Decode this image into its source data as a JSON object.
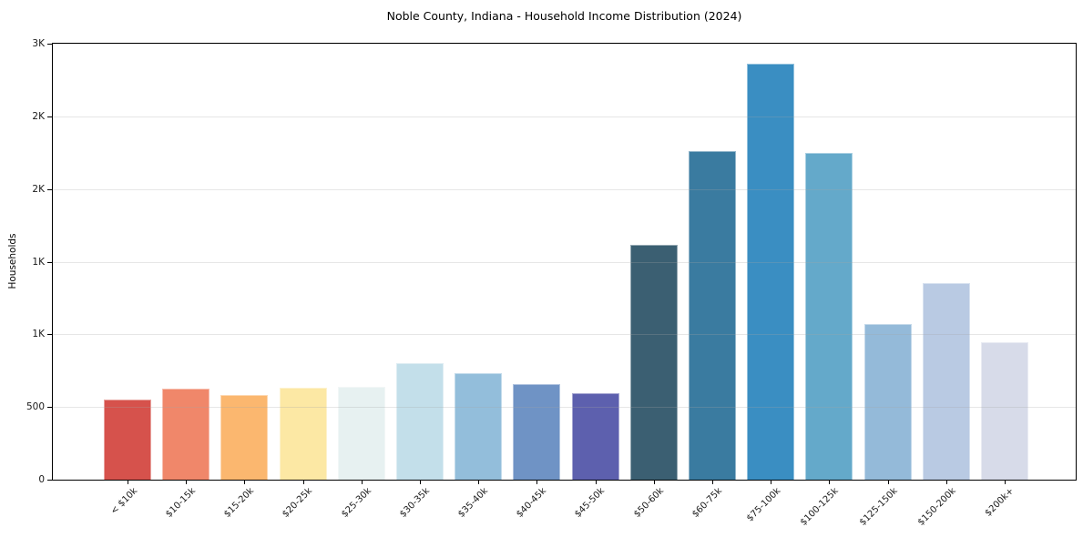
{
  "chart_data": {
    "type": "bar",
    "title": "Noble County, Indiana - Household Income Distribution (2024)",
    "xlabel": "",
    "ylabel": "Households",
    "ylim": [
      0,
      3000
    ],
    "grid": "horizontal-only",
    "legend": "none",
    "background_color": "#ffffff",
    "spine_color": "#000000",
    "gridline_color": "#e7e7e7",
    "y_ticks": [
      {
        "label": "0",
        "value": 0
      },
      {
        "label": "500",
        "value": 500
      },
      {
        "label": "1K",
        "value": 1000
      },
      {
        "label": "1K",
        "value": 1500
      },
      {
        "label": "2K",
        "value": 2000
      },
      {
        "label": "2K",
        "value": 2500
      },
      {
        "label": "3K",
        "value": 3000
      }
    ],
    "categories": [
      "< $10k",
      "$10-15k",
      "$15-20k",
      "$20-25k",
      "$25-30k",
      "$30-35k",
      "$35-40k",
      "$40-45k",
      "$45-50k",
      "$50-60k",
      "$60-75k",
      "$75-100k",
      "$100-125k",
      "$125-150k",
      "$150-200k",
      "$200k+"
    ],
    "values": [
      550,
      625,
      585,
      635,
      640,
      800,
      735,
      660,
      595,
      1615,
      2260,
      2865,
      2250,
      1070,
      1355,
      945
    ],
    "bar_colors": [
      "#d6524c",
      "#f0876a",
      "#fbb76f",
      "#fce8a4",
      "#e7f1f1",
      "#c3dfea",
      "#93bedb",
      "#6f93c5",
      "#5d60ae",
      "#3b5f72",
      "#3a7ba0",
      "#3a8ec2",
      "#64a9ca",
      "#94bad9",
      "#b9cae3",
      "#d7dbe9"
    ]
  }
}
